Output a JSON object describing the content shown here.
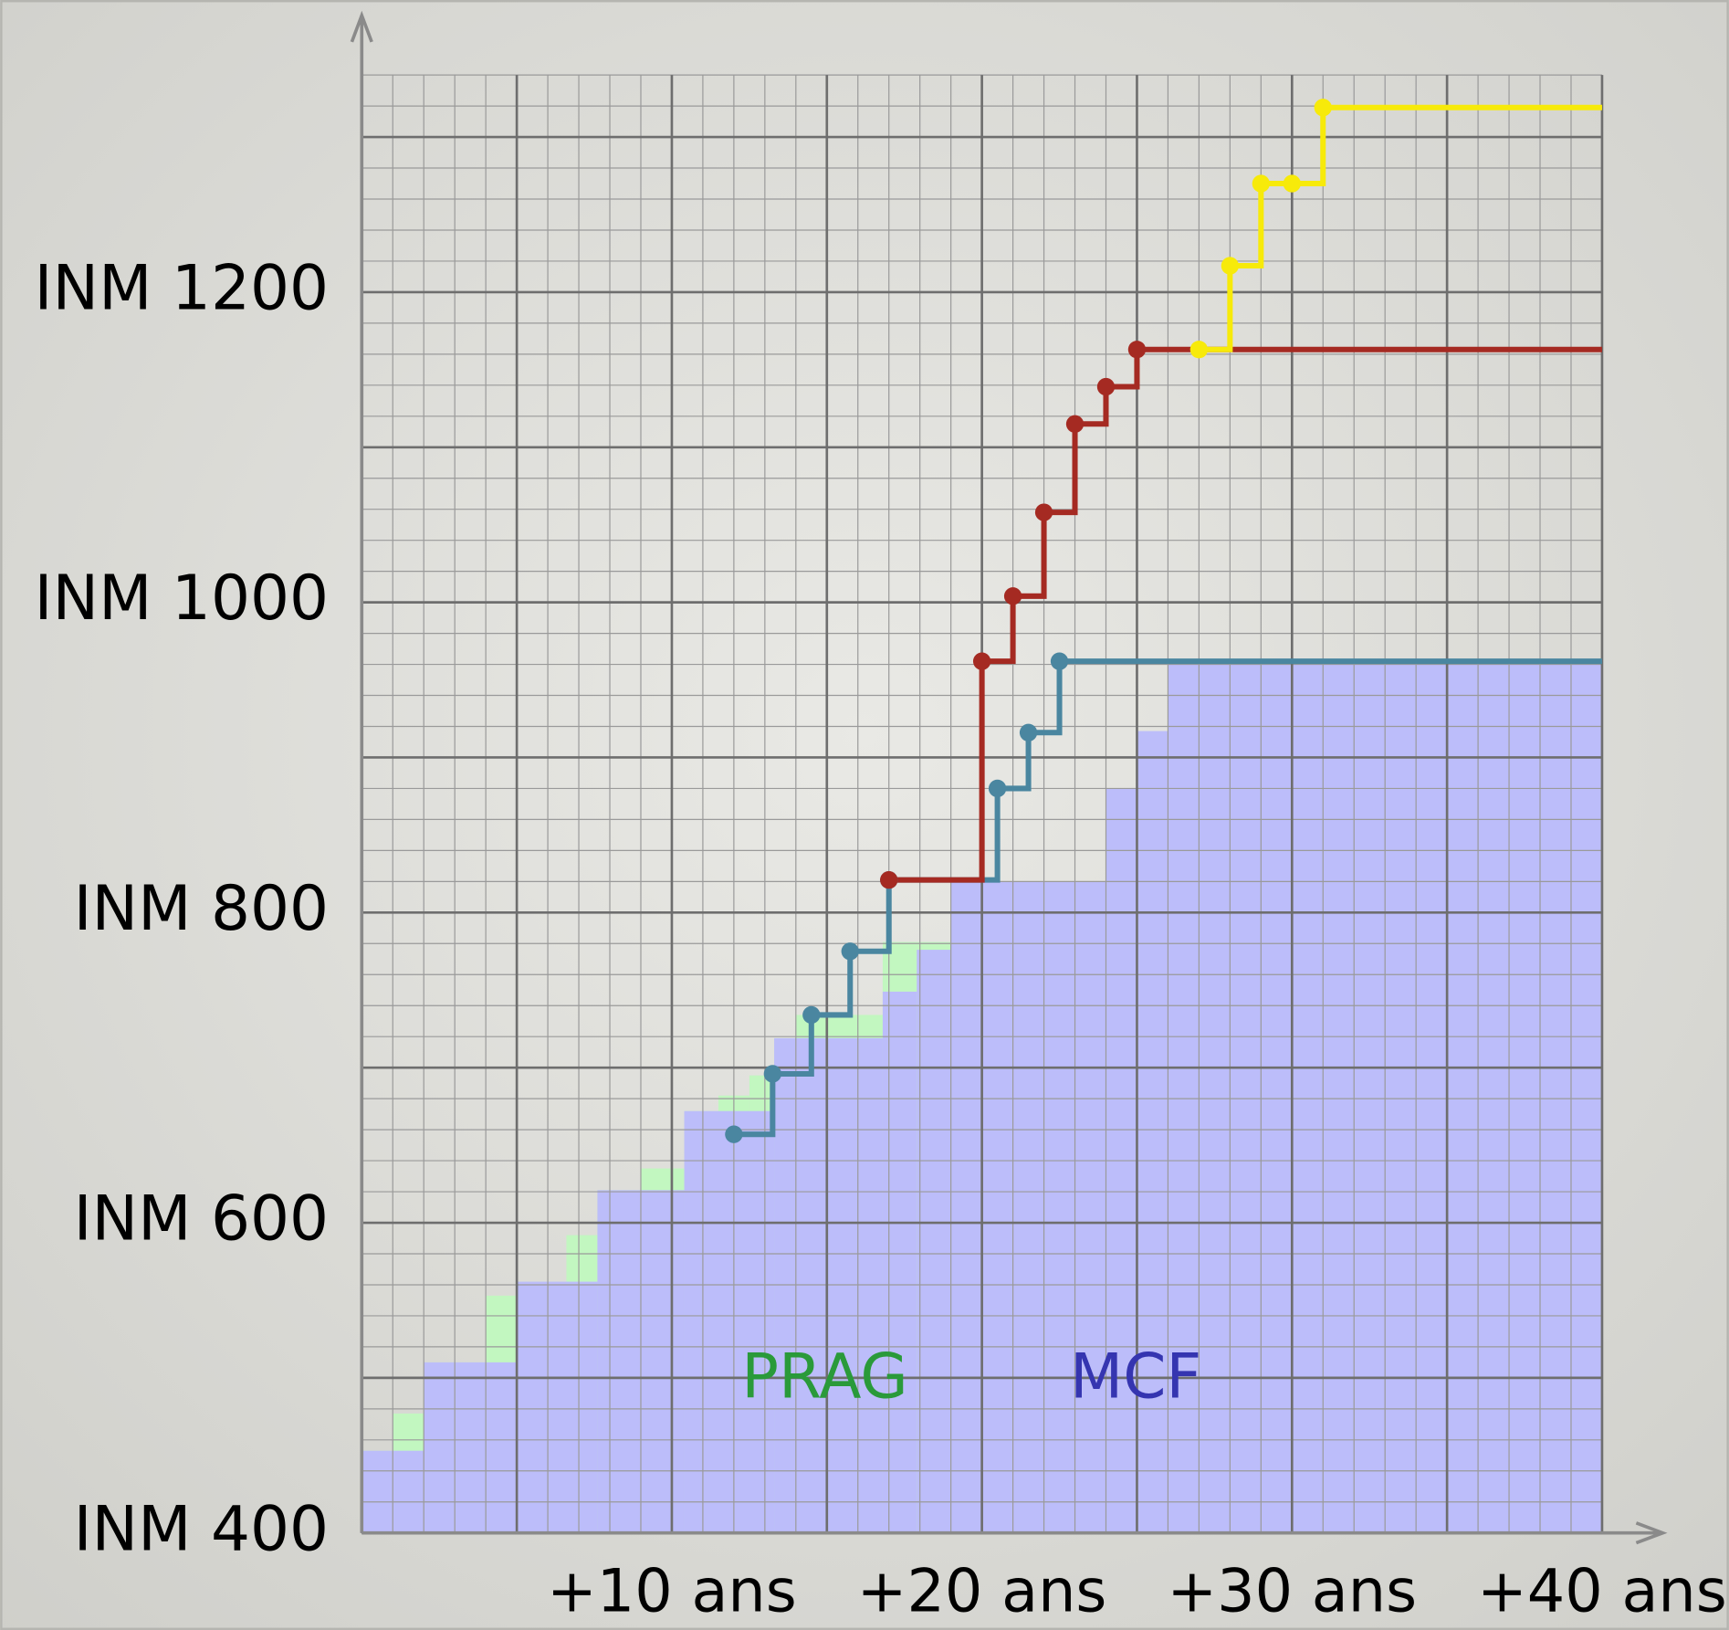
{
  "chart_data": {
    "type": "step",
    "xlim": [
      0,
      40
    ],
    "ylim": [
      400,
      1340
    ],
    "xticks": [
      {
        "value": 10,
        "label": "+10 ans"
      },
      {
        "value": 20,
        "label": "+20 ans"
      },
      {
        "value": 30,
        "label": "+30 ans"
      },
      {
        "value": 40,
        "label": "+40 ans"
      }
    ],
    "yticks": [
      {
        "value": 400,
        "label": "INM 400"
      },
      {
        "value": 600,
        "label": "INM 600"
      },
      {
        "value": 800,
        "label": "INM 800"
      },
      {
        "value": 1000,
        "label": "INM 1000"
      },
      {
        "value": 1200,
        "label": "INM 1200"
      }
    ],
    "grid": {
      "major_x": 5,
      "major_y": 100,
      "minor_x": 1,
      "minor_y": 20
    },
    "areas": [
      {
        "name": "PRAG",
        "color": "#c2f7c0",
        "label_color": "#2a9a3a",
        "bins": [
          0,
          1,
          2,
          4,
          5,
          6.6,
          7.6,
          9,
          10.4,
          11.5,
          12.5,
          13.3,
          14,
          16.8,
          19,
          40
        ],
        "values": [
          453,
          477,
          510,
          553,
          562,
          592,
          621,
          635,
          672,
          682,
          695,
          719,
          734,
          781,
          820
        ]
      },
      {
        "name": "MCF",
        "color": "#bcbdfa",
        "label_color": "#3535b0",
        "bins": [
          0,
          2,
          5,
          7.6,
          10.4,
          13.3,
          16.8,
          17.9,
          19,
          24,
          25,
          26,
          40
        ],
        "values": [
          453,
          510,
          562,
          621,
          672,
          719,
          749,
          776,
          820,
          880,
          917,
          963
        ]
      }
    ],
    "series": [
      {
        "color": "#4a86a0",
        "x": [
          12,
          13.25,
          14.5,
          15.75,
          17,
          20.5,
          21.5,
          22.5
        ],
        "values": [
          657,
          696,
          734,
          775,
          821,
          880,
          916,
          962
        ]
      },
      {
        "color": "#a52a22",
        "x": [
          17,
          20,
          21,
          22,
          23,
          24,
          25
        ],
        "values": [
          821,
          962,
          1004,
          1058,
          1115,
          1139,
          1163
        ]
      },
      {
        "color": "#f7ea0a",
        "x": [
          27,
          28,
          29,
          30,
          31
        ],
        "values": [
          1163,
          1217,
          1270,
          1270,
          1319
        ]
      }
    ]
  }
}
